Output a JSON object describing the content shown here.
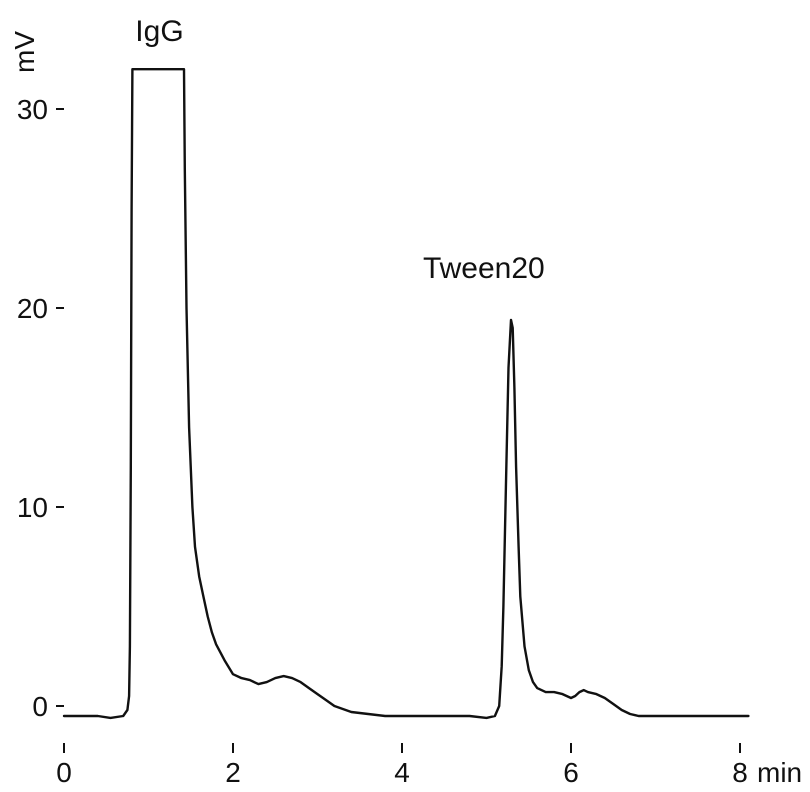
{
  "chart_data": {
    "type": "line",
    "title": "",
    "xlabel": "min",
    "ylabel": "mV",
    "xlim": [
      0,
      8.2
    ],
    "ylim": [
      -1,
      32
    ],
    "x_ticks": [
      0,
      2,
      4,
      6,
      8
    ],
    "x_tick_labels": [
      "0",
      "2",
      "4",
      "6",
      "8"
    ],
    "y_ticks": [
      0,
      10,
      20,
      30
    ],
    "y_tick_labels": [
      "0",
      "10",
      "20",
      "30"
    ],
    "grid": false,
    "legend": "none",
    "line_color": "#111111",
    "annotations": [
      {
        "text": "IgG",
        "x": 1.13,
        "y": 32
      },
      {
        "text": "Tween20",
        "x": 5.3,
        "y": 19.5
      }
    ],
    "series": [
      {
        "x": [
          0.0,
          0.2,
          0.4,
          0.55,
          0.7,
          0.75,
          0.77,
          0.78,
          0.79,
          0.8,
          0.81,
          0.82,
          1.42,
          1.43,
          1.45,
          1.48,
          1.52,
          1.55,
          1.6,
          1.65,
          1.7,
          1.75,
          1.8,
          1.9,
          2.0,
          2.1,
          2.2,
          2.3,
          2.4,
          2.5,
          2.6,
          2.7,
          2.8,
          2.9,
          3.0,
          3.1,
          3.2,
          3.4,
          3.6,
          3.8,
          4.0,
          4.2,
          4.4,
          4.6,
          4.8,
          5.0,
          5.1,
          5.15,
          5.18,
          5.2,
          5.23,
          5.26,
          5.29,
          5.31,
          5.33,
          5.35,
          5.38,
          5.4,
          5.45,
          5.5,
          5.55,
          5.6,
          5.7,
          5.8,
          5.9,
          6.0,
          6.05,
          6.1,
          6.15,
          6.2,
          6.3,
          6.4,
          6.5,
          6.6,
          6.7,
          6.8,
          7.0,
          7.2,
          7.4,
          7.6,
          7.8,
          8.0,
          8.1
        ],
        "y": [
          -0.5,
          -0.5,
          -0.5,
          -0.6,
          -0.5,
          -0.2,
          0.5,
          3.0,
          12.0,
          25.0,
          32.0,
          32.0,
          32.0,
          27.0,
          20.0,
          14.0,
          10.0,
          8.0,
          6.5,
          5.5,
          4.5,
          3.7,
          3.1,
          2.3,
          1.6,
          1.4,
          1.3,
          1.1,
          1.2,
          1.4,
          1.5,
          1.4,
          1.2,
          0.9,
          0.6,
          0.3,
          0.0,
          -0.3,
          -0.4,
          -0.5,
          -0.5,
          -0.5,
          -0.5,
          -0.5,
          -0.5,
          -0.6,
          -0.5,
          0.0,
          2.0,
          5.0,
          11.0,
          17.0,
          19.4,
          19.0,
          16.0,
          12.0,
          8.0,
          5.5,
          3.0,
          1.8,
          1.2,
          0.9,
          0.7,
          0.7,
          0.6,
          0.4,
          0.5,
          0.7,
          0.8,
          0.7,
          0.6,
          0.4,
          0.1,
          -0.2,
          -0.4,
          -0.5,
          -0.5,
          -0.5,
          -0.5,
          -0.5,
          -0.5,
          -0.5,
          -0.5
        ]
      }
    ]
  }
}
